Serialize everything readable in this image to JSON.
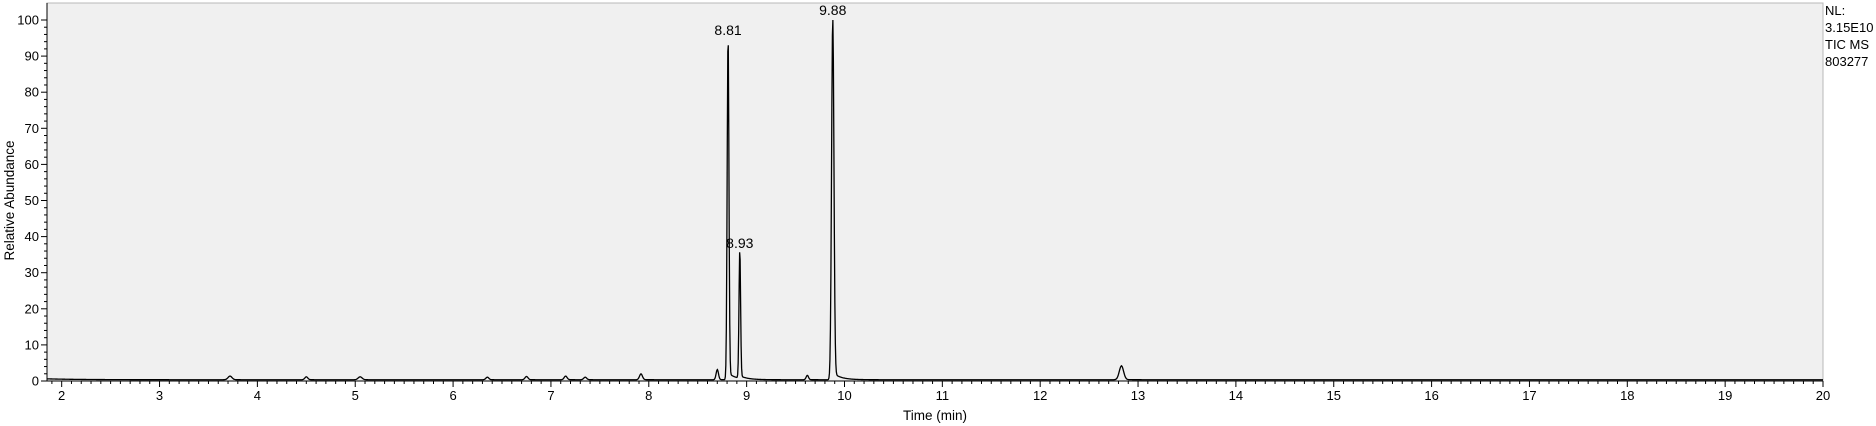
{
  "chart_data": {
    "type": "line",
    "xlabel": "Time (min)",
    "ylabel": "Relative Abundance",
    "xlim": [
      1.85,
      20.0
    ],
    "ylim": [
      0,
      100
    ],
    "x_ticks": [
      2,
      3,
      4,
      5,
      6,
      7,
      8,
      9,
      10,
      11,
      12,
      13,
      14,
      15,
      16,
      17,
      18,
      19,
      20
    ],
    "y_ticks": [
      0,
      10,
      20,
      30,
      40,
      50,
      60,
      70,
      80,
      90,
      100
    ],
    "grid": false,
    "plot_background": "#f0f0f0",
    "line_color": "#000000",
    "peaks": [
      {
        "x": 3.72,
        "y": 1.0,
        "w": 0.02
      },
      {
        "x": 4.5,
        "y": 0.8,
        "w": 0.015
      },
      {
        "x": 5.05,
        "y": 0.8,
        "w": 0.02
      },
      {
        "x": 6.35,
        "y": 0.7,
        "w": 0.015
      },
      {
        "x": 6.75,
        "y": 0.9,
        "w": 0.015
      },
      {
        "x": 7.15,
        "y": 1.0,
        "w": 0.015
      },
      {
        "x": 7.35,
        "y": 0.7,
        "w": 0.015
      },
      {
        "x": 7.92,
        "y": 1.6,
        "w": 0.015
      },
      {
        "x": 8.7,
        "y": 2.8,
        "w": 0.012
      },
      {
        "x": 8.81,
        "y": 94.5,
        "w": 0.009
      },
      {
        "x": 8.93,
        "y": 35.5,
        "w": 0.008
      },
      {
        "x": 9.62,
        "y": 1.2,
        "w": 0.012
      },
      {
        "x": 9.88,
        "y": 100,
        "w": 0.012
      },
      {
        "x": 12.83,
        "y": 3.8,
        "w": 0.022
      }
    ],
    "peak_labels": [
      {
        "x": 8.81,
        "y": 94.5,
        "text": "8.81"
      },
      {
        "x": 8.93,
        "y": 35.5,
        "text": "8.93"
      },
      {
        "x": 9.88,
        "y": 100,
        "text": "9.88"
      }
    ]
  },
  "header_info": {
    "line1": "NL:",
    "line2": "3.15E10",
    "line3": "TIC  MS",
    "line4": "803277"
  }
}
